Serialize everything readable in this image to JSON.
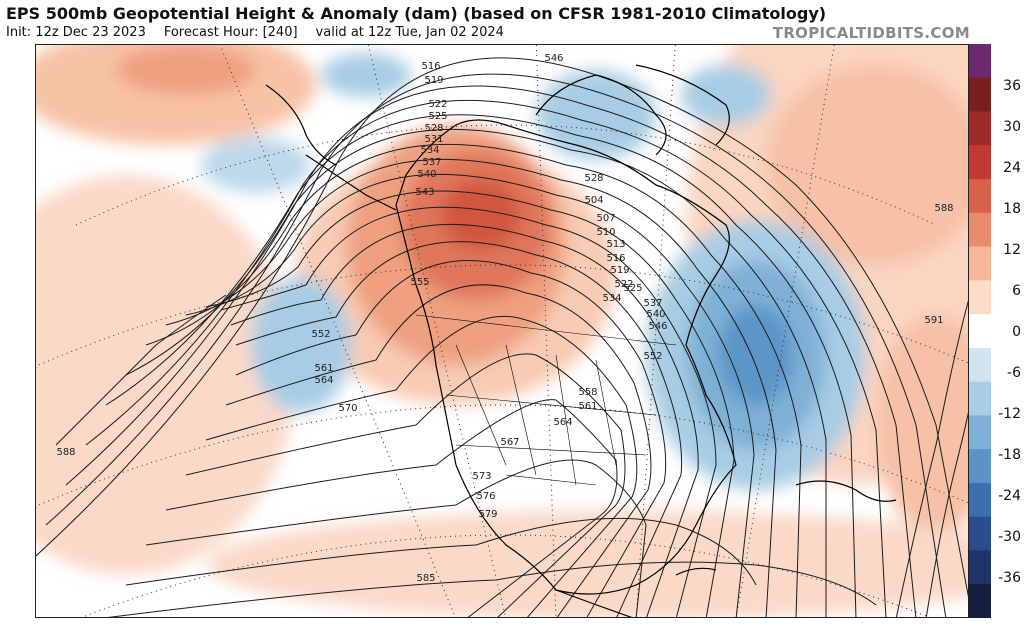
{
  "header": {
    "title": "EPS 500mb Geopotential Height & Anomaly (dam) (based on CFSR 1981-2010 Climatology)",
    "init": "Init: 12z Dec 23 2023",
    "forecast_hour": "Forecast Hour: [240]",
    "valid": "valid at 12z Tue, Jan 02 2024",
    "brand": "TROPICALTIDBITS.COM"
  },
  "colorbar": {
    "ticks": [
      "36",
      "30",
      "24",
      "18",
      "12",
      "6",
      "0",
      "-6",
      "-12",
      "-18",
      "-24",
      "-30",
      "-36"
    ],
    "colors": [
      "#6b2a6e",
      "#7a1f1f",
      "#9e2a2a",
      "#c03a33",
      "#d8614a",
      "#e98c6e",
      "#f4b79a",
      "#fbdcc8",
      "#ffffff",
      "#cfe3f0",
      "#a9cde4",
      "#7fb1d6",
      "#5b93c6",
      "#3d6fb0",
      "#2a4d8e",
      "#1c3468",
      "#141e3c"
    ]
  },
  "map": {
    "contour_labels": [
      "516",
      "519",
      "522",
      "525",
      "528",
      "531",
      "534",
      "537",
      "540",
      "543",
      "546",
      "504",
      "507",
      "510",
      "513",
      "516",
      "519",
      "522",
      "525",
      "528",
      "534",
      "537",
      "540",
      "546",
      "552",
      "555",
      "552",
      "558",
      "561",
      "561",
      "564",
      "564",
      "567",
      "570",
      "573",
      "576",
      "579",
      "585",
      "588",
      "588",
      "591"
    ]
  }
}
